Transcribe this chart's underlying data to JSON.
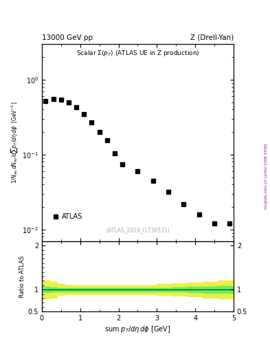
{
  "title_left": "13000 GeV pp",
  "title_right": "Z (Drell-Yan)",
  "plot_title": "Scalar Σ(p_{T}) (ATLAS UE in Z production)",
  "xlabel": "sum p_{T}/dη dφ [GeV]",
  "ylabel_main": "1/N_{ev} dN_{ev}/dsum p_{T}/dη dφ  [GeV]",
  "ylabel_ratio": "Ratio to ATLAS",
  "watermark": "(ATLAS_2019_I1736531)",
  "right_label": "mcplots.cern.ch [arXiv:1306.3436]",
  "data_x": [
    0.1,
    0.3,
    0.5,
    0.7,
    0.9,
    1.1,
    1.3,
    1.5,
    1.7,
    1.9,
    2.1,
    2.5,
    2.9,
    3.3,
    3.7,
    4.1,
    4.5,
    4.9
  ],
  "data_y": [
    0.52,
    0.55,
    0.54,
    0.5,
    0.43,
    0.35,
    0.27,
    0.2,
    0.155,
    0.105,
    0.075,
    0.06,
    0.045,
    0.032,
    0.022,
    0.016,
    0.012,
    0.012
  ],
  "xlim": [
    0,
    5.0
  ],
  "ylim_main": [
    0.007,
    3.0
  ],
  "ylim_ratio": [
    0.5,
    2.1
  ],
  "ratio_x": [
    0.0,
    0.2,
    0.4,
    0.6,
    0.8,
    1.0,
    1.2,
    1.4,
    1.6,
    1.8,
    2.0,
    2.2,
    2.6,
    3.0,
    3.4,
    3.8,
    4.2,
    4.6,
    5.0
  ],
  "ratio_green_upper": [
    1.06,
    1.05,
    1.04,
    1.04,
    1.04,
    1.04,
    1.04,
    1.04,
    1.04,
    1.04,
    1.04,
    1.04,
    1.04,
    1.04,
    1.05,
    1.06,
    1.07,
    1.08,
    1.09
  ],
  "ratio_green_lower": [
    0.94,
    0.95,
    0.96,
    0.96,
    0.96,
    0.96,
    0.96,
    0.96,
    0.96,
    0.96,
    0.96,
    0.96,
    0.96,
    0.96,
    0.95,
    0.94,
    0.93,
    0.92,
    0.91
  ],
  "ratio_yellow_upper": [
    1.2,
    1.18,
    1.12,
    1.1,
    1.1,
    1.1,
    1.1,
    1.1,
    1.1,
    1.1,
    1.1,
    1.1,
    1.1,
    1.12,
    1.14,
    1.16,
    1.18,
    1.2,
    1.22
  ],
  "ratio_yellow_lower": [
    0.8,
    0.82,
    0.88,
    0.9,
    0.9,
    0.9,
    0.9,
    0.9,
    0.9,
    0.9,
    0.9,
    0.9,
    0.9,
    0.88,
    0.86,
    0.84,
    0.82,
    0.8,
    0.78
  ],
  "green_color": "#66ee66",
  "yellow_color": "#eeee44",
  "line_color": "#006600",
  "marker_color": "black",
  "marker_size": 4,
  "bg_color": "white"
}
